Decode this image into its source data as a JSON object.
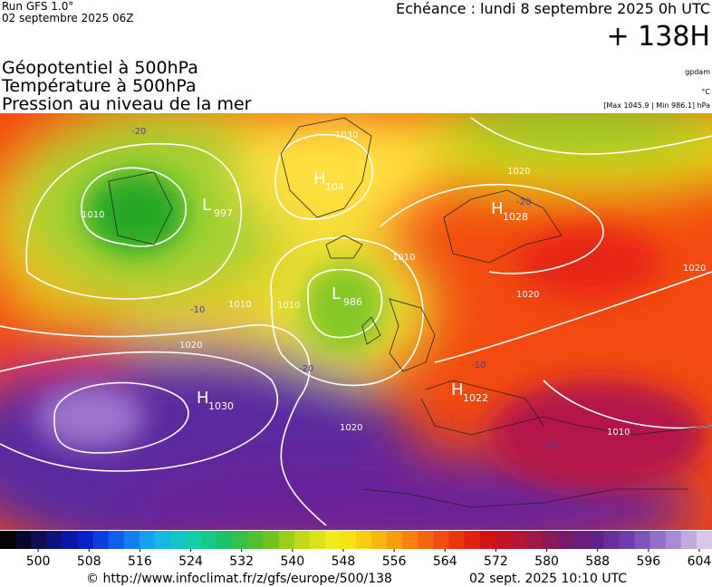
{
  "header": {
    "run": "Run GFS 1.0°",
    "run_date": "02 septembre 2025 06Z",
    "valid": "Echéance : lundi 8 septembre 2025 0h UTC",
    "offset": "+ 138H"
  },
  "titles": [
    "Géopotentiel à 500hPa",
    "Température à 500hPa",
    "Pression au niveau de la mer"
  ],
  "units": [
    "gpdam",
    "°C",
    "[Max 1045.9 | Min 986.1] hPa"
  ],
  "centers": [
    {
      "kind": "L",
      "value": "997"
    },
    {
      "kind": "H",
      "value": "104"
    },
    {
      "kind": "H",
      "value": "1028"
    },
    {
      "kind": "L",
      "value": "986"
    },
    {
      "kind": "H",
      "value": "1030"
    },
    {
      "kind": "H",
      "value": "1022"
    }
  ],
  "isobar_labels": [
    "1030",
    "1020",
    "1010",
    "1010",
    "1010",
    "1020",
    "1020",
    "1020",
    "1010",
    "1020",
    "1010"
  ],
  "temperature_labels": [
    "-20",
    "-10",
    "-20",
    "-20",
    "-10",
    "-10"
  ],
  "colorbar": {
    "lim": [
      494,
      606
    ],
    "ticks": [
      500,
      508,
      516,
      524,
      532,
      540,
      548,
      556,
      564,
      572,
      580,
      588,
      596,
      604
    ]
  },
  "footer": {
    "source": "© http://www.infoclimat.fr/z/gfs/europe/500/138",
    "timestamp": "02 sept. 2025 10:10 UTC"
  }
}
